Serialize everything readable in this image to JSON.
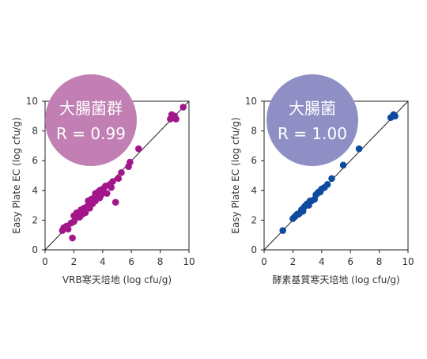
{
  "chart_data": [
    {
      "type": "scatter",
      "badge": {
        "title": "大腸菌群",
        "stat": "R = 0.99",
        "color": "#c17fb3"
      },
      "xlabel": "VRB寒天培地 (log cfu/g)",
      "ylabel": "Easy Plate EC (log cfu/g)",
      "xlim": [
        0,
        10
      ],
      "ylim": [
        0,
        10
      ],
      "xticks": [
        "0",
        "2",
        "4",
        "6",
        "8",
        "10"
      ],
      "yticks": [
        "0",
        "2",
        "4",
        "6",
        "8",
        "10"
      ],
      "grid": false,
      "reference_line": "y = x",
      "series": [
        {
          "color": "#a3168a",
          "points": [
            [
              1.2,
              1.3
            ],
            [
              1.3,
              1.5
            ],
            [
              1.5,
              1.6
            ],
            [
              1.6,
              1.4
            ],
            [
              1.8,
              1.8
            ],
            [
              1.9,
              0.8
            ],
            [
              2.0,
              1.9
            ],
            [
              2.0,
              2.3
            ],
            [
              2.1,
              2.1
            ],
            [
              2.2,
              2.5
            ],
            [
              2.3,
              2.3
            ],
            [
              2.4,
              2.2
            ],
            [
              2.5,
              2.7
            ],
            [
              2.6,
              2.4
            ],
            [
              2.7,
              2.8
            ],
            [
              2.8,
              2.5
            ],
            [
              2.9,
              2.9
            ],
            [
              3.0,
              3.0
            ],
            [
              3.0,
              3.3
            ],
            [
              3.1,
              2.8
            ],
            [
              3.2,
              3.4
            ],
            [
              3.3,
              3.1
            ],
            [
              3.4,
              3.5
            ],
            [
              3.5,
              3.3
            ],
            [
              3.5,
              3.8
            ],
            [
              3.6,
              3.6
            ],
            [
              3.7,
              3.9
            ],
            [
              3.8,
              3.5
            ],
            [
              3.8,
              4.0
            ],
            [
              3.9,
              3.7
            ],
            [
              4.0,
              4.1
            ],
            [
              4.1,
              3.9
            ],
            [
              4.2,
              4.3
            ],
            [
              4.3,
              3.8
            ],
            [
              4.5,
              4.4
            ],
            [
              4.6,
              4.2
            ],
            [
              4.7,
              4.6
            ],
            [
              4.9,
              3.2
            ],
            [
              5.1,
              4.8
            ],
            [
              5.3,
              5.2
            ],
            [
              5.8,
              5.6
            ],
            [
              5.9,
              5.9
            ],
            [
              6.5,
              6.8
            ],
            [
              8.7,
              8.8
            ],
            [
              8.8,
              9.1
            ],
            [
              8.9,
              8.9
            ],
            [
              9.0,
              9.0
            ],
            [
              9.1,
              8.8
            ],
            [
              9.6,
              9.6
            ]
          ]
        }
      ]
    },
    {
      "type": "scatter",
      "badge": {
        "title": "大腸菌",
        "stat": "R = 1.00",
        "color": "#8f8fc6"
      },
      "xlabel": "酵素基質寒天培地 (log cfu/g)",
      "ylabel": "Easy Plate EC (log cfu/g)",
      "xlim": [
        0,
        10
      ],
      "ylim": [
        0,
        10
      ],
      "xticks": [
        "0",
        "2",
        "4",
        "6",
        "8",
        "10"
      ],
      "yticks": [
        "0",
        "2",
        "4",
        "6",
        "8",
        "10"
      ],
      "grid": false,
      "reference_line": "y = x",
      "series": [
        {
          "color": "#0e4aa0",
          "points": [
            [
              1.3,
              1.3
            ],
            [
              2.0,
              2.1
            ],
            [
              2.1,
              2.2
            ],
            [
              2.2,
              2.3
            ],
            [
              2.3,
              2.4
            ],
            [
              2.4,
              2.4
            ],
            [
              2.5,
              2.5
            ],
            [
              2.6,
              2.7
            ],
            [
              2.7,
              2.6
            ],
            [
              2.8,
              2.9
            ],
            [
              2.9,
              3.0
            ],
            [
              3.0,
              3.1
            ],
            [
              3.1,
              3.0
            ],
            [
              3.2,
              3.3
            ],
            [
              3.3,
              3.3
            ],
            [
              3.5,
              3.4
            ],
            [
              3.6,
              3.7
            ],
            [
              3.7,
              3.8
            ],
            [
              3.8,
              3.9
            ],
            [
              3.9,
              3.9
            ],
            [
              4.0,
              4.1
            ],
            [
              4.2,
              4.2
            ],
            [
              4.4,
              4.4
            ],
            [
              4.7,
              4.8
            ],
            [
              5.5,
              5.7
            ],
            [
              6.6,
              6.8
            ],
            [
              8.8,
              8.9
            ],
            [
              9.0,
              9.1
            ],
            [
              9.1,
              9.0
            ]
          ]
        }
      ]
    }
  ]
}
